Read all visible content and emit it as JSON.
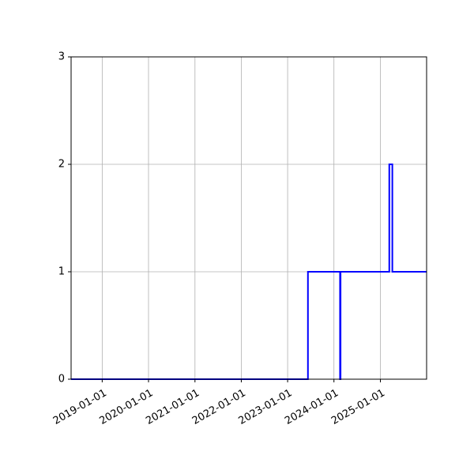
{
  "chart_data": {
    "type": "line",
    "step": true,
    "grid": true,
    "title": "",
    "xlabel": "",
    "ylabel": "",
    "x_axis": {
      "kind": "date",
      "range": [
        "2018-05-01",
        "2025-12-31"
      ],
      "ticks": [
        "2019-01-01",
        "2020-01-01",
        "2021-01-01",
        "2022-01-01",
        "2023-01-01",
        "2024-01-01",
        "2025-01-01"
      ],
      "tick_labels": [
        "2019-01-01",
        "2020-01-01",
        "2021-01-01",
        "2022-01-01",
        "2023-01-01",
        "2024-01-01",
        "2025-01-01"
      ],
      "tick_label_rotation": "30 degrees"
    },
    "y_axis": {
      "range": [
        0,
        3
      ],
      "ticks": [
        0,
        1,
        2,
        3
      ],
      "tick_labels": [
        "0",
        "1",
        "2",
        "3"
      ]
    },
    "series": [
      {
        "color": "#0000ff",
        "points": [
          {
            "x": "2018-05-01",
            "y": 0
          },
          {
            "x": "2023-06-10",
            "y": 0
          },
          {
            "x": "2023-06-10",
            "y": 1
          },
          {
            "x": "2024-02-18",
            "y": 1
          },
          {
            "x": "2024-02-18",
            "y": 0
          },
          {
            "x": "2024-02-22",
            "y": 0
          },
          {
            "x": "2024-02-22",
            "y": 1
          },
          {
            "x": "2025-03-12",
            "y": 1
          },
          {
            "x": "2025-03-12",
            "y": 2
          },
          {
            "x": "2025-04-05",
            "y": 2
          },
          {
            "x": "2025-04-05",
            "y": 1
          },
          {
            "x": "2025-12-31",
            "y": 1
          }
        ]
      }
    ]
  }
}
